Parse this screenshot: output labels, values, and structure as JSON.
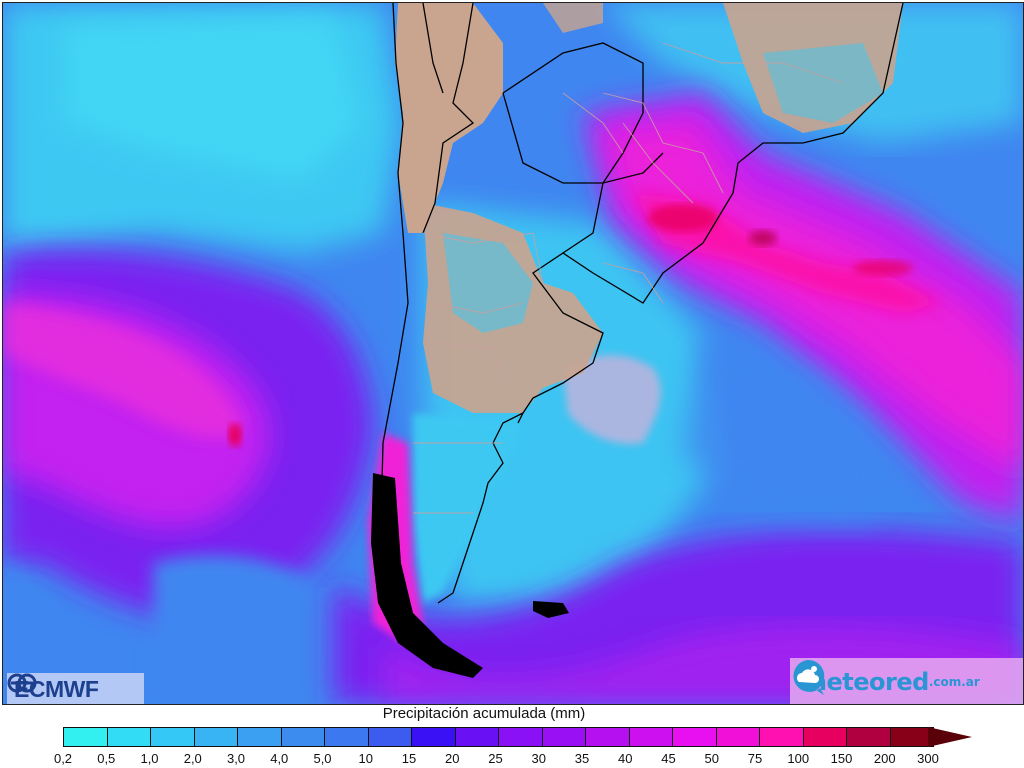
{
  "map": {
    "title": "Precipitación acumulada (mm)",
    "region": "South America - Southern Cone",
    "colors": {
      "ocean_base": "#3f86f0",
      "land": "#c9a48f",
      "no_precip_sea": "#aab6e0",
      "country_border": "#000000",
      "province_border": "#c8a0a0"
    }
  },
  "logos": {
    "left": {
      "text": "ECMWF"
    },
    "right": {
      "brand": "meteored",
      "domain": ".com.ar"
    }
  },
  "legend": {
    "title": "Precipitación acumulada (mm)",
    "labels": [
      "0,2",
      "0,5",
      "1,0",
      "2,0",
      "3,0",
      "4,0",
      "5,0",
      "10",
      "15",
      "20",
      "25",
      "30",
      "35",
      "40",
      "45",
      "50",
      "75",
      "100",
      "150",
      "200",
      "300"
    ],
    "colors": [
      "#33f0f0",
      "#33dcf5",
      "#33c8f5",
      "#38b4f5",
      "#3ca0f2",
      "#3c8cf0",
      "#3c78f0",
      "#3c5cf0",
      "#3a10f5",
      "#6a10f5",
      "#8a10f5",
      "#9a10f5",
      "#b410f0",
      "#cc10f0",
      "#e810f0",
      "#f010d8",
      "#ff10b0",
      "#e80060",
      "#b00040",
      "#880018"
    ],
    "overflow_color": "#5a0008"
  }
}
